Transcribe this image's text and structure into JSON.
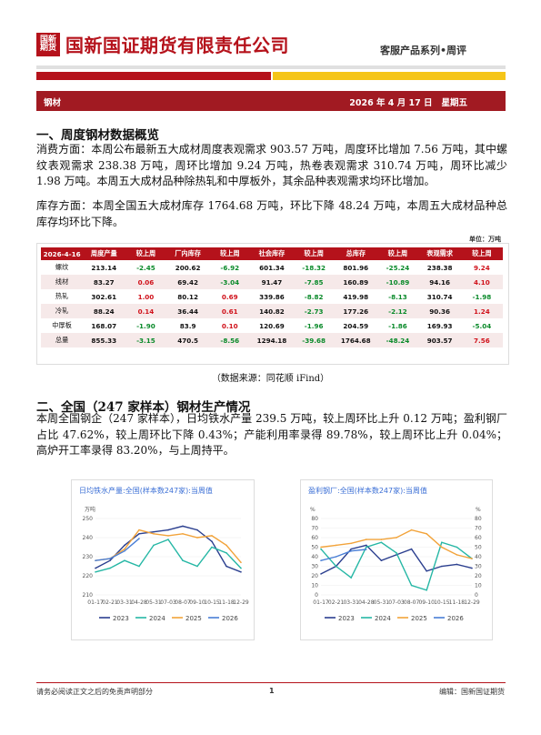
{
  "header": {
    "logo_text": "国新\n期货",
    "company": "国新国证期货有限责任公司",
    "series": "客服产品系列•周评"
  },
  "bar": {
    "left": "钢材",
    "date": "2026 年 4 月 17 日",
    "weekday": "星期五"
  },
  "section1": {
    "heading": "一、周度钢材数据概览",
    "para1": "消费方面：本周公布最新五大成材周度表观需求 903.57 万吨，周度环比增加 7.56 万吨，其中螺纹表观需求 238.38 万吨，周环比增加 9.24 万吨，热卷表观需求 310.74 万吨，周环比减少 1.98 万吨。本周五大成材品种除热轧和中厚板外，其余品种表观需求均环比增加。",
    "para2": "库存方面：本周全国五大成材库存 1764.68 万吨，环比下降 48.24 万吨，本周五大成材品种总库存均环比下降。"
  },
  "table": {
    "unit": "单位：万吨",
    "headers": [
      "2026-4-16",
      "周度产量",
      "较上周",
      "厂内库存",
      "较上周",
      "社会库存",
      "较上周",
      "总库存",
      "较上周",
      "表观需求",
      "较上周"
    ],
    "rows": [
      [
        "螺纹",
        "213.14",
        "-2.45",
        "200.62",
        "-6.92",
        "601.34",
        "-18.32",
        "801.96",
        "-25.24",
        "238.38",
        "9.24"
      ],
      [
        "线材",
        "83.27",
        "0.06",
        "69.42",
        "-3.04",
        "91.47",
        "-7.85",
        "160.89",
        "-10.89",
        "94.16",
        "4.10"
      ],
      [
        "热轧",
        "302.61",
        "1.00",
        "80.12",
        "0.69",
        "339.86",
        "-8.82",
        "419.98",
        "-8.13",
        "310.74",
        "-1.98"
      ],
      [
        "冷轧",
        "88.24",
        "0.14",
        "36.44",
        "0.61",
        "140.82",
        "-2.73",
        "177.26",
        "-2.12",
        "90.36",
        "1.24"
      ],
      [
        "中厚板",
        "168.07",
        "-1.90",
        "83.9",
        "0.10",
        "120.69",
        "-1.96",
        "204.59",
        "-1.86",
        "169.93",
        "-5.04"
      ],
      [
        "总量",
        "855.33",
        "-3.15",
        "470.5",
        "-8.56",
        "1294.18",
        "-39.68",
        "1764.68",
        "-48.24",
        "903.57",
        "7.56"
      ]
    ],
    "source": "（数据来源：同花顺 iFind）"
  },
  "section2": {
    "heading": "二、全国（247 家样本）钢材生产情况",
    "para": "本周全国钢企（247 家样本），日均铁水产量 239.5 万吨，较上周环比上升 0.12 万吨；盈利钢厂占比 47.62%，较上周环比下降 0.43%；产能利用率录得 89.78%，较上周环比上升 0.04%；高炉开工率录得 83.20%，与上周持平。"
  },
  "colors": {
    "s2023": "#2b3f8f",
    "s2024": "#26b7a5",
    "s2025": "#f2a33a",
    "s2026": "#4a7fd6",
    "brand": "#b5121b"
  },
  "chart_data": [
    {
      "type": "line",
      "title": "日均铁水产量:全国(样本数247家):当周值",
      "ylabel": "万吨",
      "x_ticks": [
        "01-17",
        "02-21",
        "03-31",
        "04-28",
        "05-31",
        "07-03",
        "08-07",
        "09-10",
        "10-15",
        "11-18",
        "12-29"
      ],
      "ylim": [
        210,
        250
      ],
      "y_ticks": [
        210,
        220,
        230,
        240,
        250
      ],
      "series": [
        {
          "name": "2023",
          "values": [
            224,
            228,
            236,
            242,
            243,
            244,
            246,
            244,
            238,
            225,
            222
          ]
        },
        {
          "name": "2024",
          "values": [
            222,
            224,
            228,
            225,
            236,
            239,
            228,
            225,
            235,
            232,
            224
          ]
        },
        {
          "name": "2025",
          "values": [
            228,
            229,
            234,
            244,
            242,
            241,
            242,
            240,
            241,
            236,
            227
          ]
        },
        {
          "name": "2026",
          "values": [
            228,
            229,
            233,
            239.5
          ]
        }
      ]
    },
    {
      "type": "line",
      "title": "盈利钢厂:全国(样本数247家):当周值",
      "ylabel": "%",
      "x_ticks": [
        "01-17",
        "02-21",
        "03-31",
        "04-28",
        "05-31",
        "07-03",
        "08-07",
        "09-10",
        "10-15",
        "11-18",
        "12-29"
      ],
      "ylim": [
        0,
        80
      ],
      "y_ticks": [
        0,
        10,
        20,
        30,
        40,
        50,
        60,
        70,
        80
      ],
      "series": [
        {
          "name": "2023",
          "values": [
            22,
            30,
            48,
            52,
            36,
            42,
            48,
            25,
            30,
            32,
            28
          ]
        },
        {
          "name": "2024",
          "values": [
            48,
            30,
            18,
            50,
            55,
            44,
            10,
            5,
            55,
            50,
            38
          ]
        },
        {
          "name": "2025",
          "values": [
            50,
            52,
            54,
            58,
            58,
            60,
            68,
            64,
            50,
            42,
            38
          ]
        },
        {
          "name": "2026",
          "values": [
            36,
            40,
            46,
            47.62
          ]
        }
      ]
    }
  ],
  "footer": {
    "left": "请务必阅读正文之后的免责声明部分",
    "page": "1",
    "right": "编辑：国新国证期货"
  }
}
